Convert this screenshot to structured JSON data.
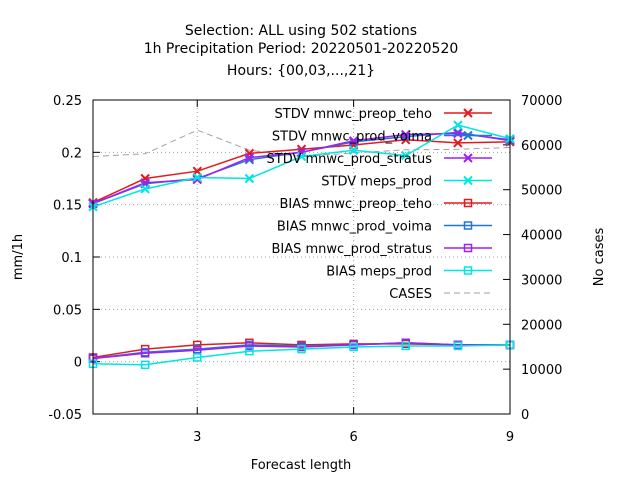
{
  "chart_data": {
    "type": "line",
    "title_lines": [
      "Selection: ALL using   502 stations",
      "1h Precipitation    Period: 20220501-20220520",
      "Hours: {00,03,...,21}"
    ],
    "xlabel": "Forecast length",
    "ylabel": "mm/1h",
    "y2label": "No cases",
    "xlim": [
      1,
      9
    ],
    "ylim": [
      -0.05,
      0.25
    ],
    "y2lim": [
      0,
      70000
    ],
    "xticks": [
      3,
      6,
      9
    ],
    "yticks": [
      -0.05,
      0,
      0.05,
      0.1,
      0.15,
      0.2,
      0.25
    ],
    "y2ticks": [
      0,
      10000,
      20000,
      30000,
      40000,
      50000,
      60000,
      70000
    ],
    "grid": true,
    "legend_position": "top-right",
    "x": [
      1,
      2,
      3,
      4,
      5,
      6,
      7,
      8,
      9
    ],
    "series": [
      {
        "name": "STDV mnwc_preop_teho",
        "color": "#e41a1c",
        "marker": "x",
        "axis": "y",
        "values": [
          0.152,
          0.175,
          0.182,
          0.199,
          0.203,
          0.207,
          0.212,
          0.209,
          0.21
        ]
      },
      {
        "name": "STDV mnwc_prod_voima",
        "color": "#1f77d4",
        "marker": "x",
        "axis": "y",
        "values": [
          0.151,
          0.17,
          0.175,
          0.193,
          0.2,
          0.21,
          0.215,
          0.219,
          0.211
        ]
      },
      {
        "name": "STDV mnwc_prod_stratus",
        "color": "#a020f0",
        "marker": "x",
        "axis": "y",
        "values": [
          0.151,
          0.171,
          0.174,
          0.195,
          0.2,
          0.211,
          0.217,
          0.218,
          0.212
        ]
      },
      {
        "name": "STDV meps_prod",
        "color": "#00e5e5",
        "marker": "x",
        "axis": "y",
        "values": [
          0.148,
          0.165,
          0.176,
          0.175,
          0.196,
          0.202,
          0.197,
          0.226,
          0.213
        ]
      },
      {
        "name": "BIAS mnwc_preop_teho",
        "color": "#e41a1c",
        "marker": "square",
        "axis": "y",
        "values": [
          0.004,
          0.012,
          0.016,
          0.018,
          0.016,
          0.017,
          0.017,
          0.016,
          0.016
        ]
      },
      {
        "name": "BIAS mnwc_prod_voima",
        "color": "#1f77d4",
        "marker": "square",
        "axis": "y",
        "values": [
          0.003,
          0.009,
          0.012,
          0.016,
          0.015,
          0.016,
          0.018,
          0.016,
          0.016
        ]
      },
      {
        "name": "BIAS mnwc_prod_stratus",
        "color": "#a020f0",
        "marker": "square",
        "axis": "y",
        "values": [
          0.003,
          0.008,
          0.011,
          0.015,
          0.014,
          0.016,
          0.018,
          0.016,
          0.016
        ]
      },
      {
        "name": "BIAS meps_prod",
        "color": "#00e5e5",
        "marker": "square",
        "axis": "y",
        "values": [
          -0.002,
          -0.003,
          0.004,
          0.01,
          0.012,
          0.014,
          0.015,
          0.015,
          0.016
        ]
      },
      {
        "name": "CASES",
        "color": "#a0a0a0",
        "marker": "none",
        "dashed": true,
        "axis": "y2",
        "values": [
          57400,
          58000,
          63300,
          58800,
          57400,
          58200,
          58900,
          59000,
          59400
        ]
      }
    ]
  }
}
